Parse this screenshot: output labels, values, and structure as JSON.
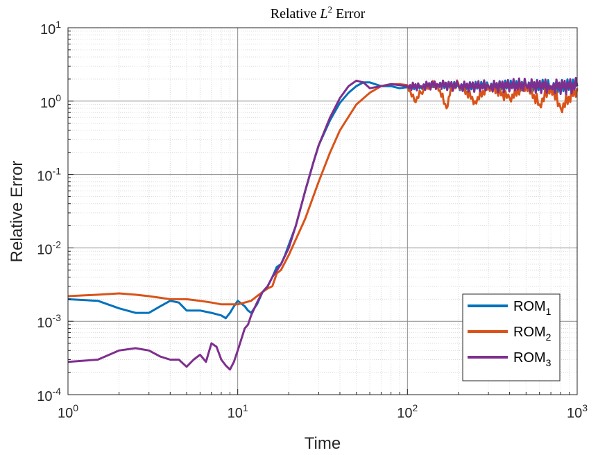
{
  "chart_data": {
    "type": "line",
    "title": "Relative L² Error",
    "title_parts": {
      "text": "Relative ",
      "var": "L",
      "sup": "2",
      "suffix": " Error"
    },
    "xlabel": "Time",
    "ylabel": "Relative Error",
    "xscale": "log",
    "yscale": "log",
    "xlim": [
      1,
      1000
    ],
    "ylim": [
      0.0001,
      10
    ],
    "xticks": [
      {
        "base": "10",
        "exp": "0"
      },
      {
        "base": "10",
        "exp": "1"
      },
      {
        "base": "10",
        "exp": "2"
      },
      {
        "base": "10",
        "exp": "3"
      }
    ],
    "yticks": [
      {
        "base": "10",
        "exp": "-4"
      },
      {
        "base": "10",
        "exp": "-3"
      },
      {
        "base": "10",
        "exp": "-2"
      },
      {
        "base": "10",
        "exp": "-1"
      },
      {
        "base": "10",
        "exp": "0"
      },
      {
        "base": "10",
        "exp": "1"
      }
    ],
    "grid": true,
    "legend_position": "bottom-right",
    "series": [
      {
        "name": "ROM",
        "sub": "1",
        "color": "#0072BD",
        "x": [
          1,
          1.5,
          2,
          2.5,
          3,
          3.5,
          4,
          4.5,
          5,
          6,
          7,
          8,
          8.5,
          9,
          9.5,
          10,
          11,
          11.5,
          12,
          13,
          14,
          15,
          16,
          17,
          18,
          19,
          20,
          22,
          25,
          28,
          30,
          35,
          40,
          45,
          50,
          55,
          60,
          70,
          80,
          90,
          100,
          120,
          150,
          200,
          300,
          500,
          700,
          1000
        ],
        "y": [
          0.002,
          0.0019,
          0.0015,
          0.0013,
          0.0013,
          0.0016,
          0.0019,
          0.0018,
          0.0014,
          0.0014,
          0.0013,
          0.0012,
          0.0011,
          0.0013,
          0.0016,
          0.0019,
          0.0016,
          0.0014,
          0.0013,
          0.0017,
          0.0025,
          0.003,
          0.004,
          0.0055,
          0.006,
          0.008,
          0.011,
          0.02,
          0.06,
          0.15,
          0.25,
          0.55,
          0.95,
          1.3,
          1.6,
          1.8,
          1.8,
          1.6,
          1.6,
          1.5,
          1.55,
          1.6,
          1.7,
          1.6,
          1.6,
          1.65,
          1.6,
          1.6
        ]
      },
      {
        "name": "ROM",
        "sub": "2",
        "color": "#D95319",
        "x": [
          1,
          1.5,
          2,
          2.5,
          3,
          4,
          5,
          6,
          7,
          8,
          9,
          10,
          11,
          12,
          13,
          14,
          15,
          16,
          17,
          18,
          20,
          22,
          25,
          30,
          35,
          40,
          50,
          60,
          70,
          80,
          90,
          100,
          110,
          120,
          130,
          150,
          170,
          180,
          200,
          250,
          300,
          400,
          500,
          600,
          700,
          800,
          1000
        ],
        "y": [
          0.0022,
          0.0023,
          0.0024,
          0.0023,
          0.0022,
          0.002,
          0.002,
          0.0019,
          0.0018,
          0.0017,
          0.0017,
          0.0017,
          0.0018,
          0.0019,
          0.0022,
          0.0025,
          0.0028,
          0.003,
          0.0045,
          0.005,
          0.008,
          0.013,
          0.025,
          0.08,
          0.2,
          0.4,
          0.9,
          1.3,
          1.6,
          1.7,
          1.7,
          1.65,
          1.0,
          1.3,
          1.6,
          1.7,
          0.8,
          1.5,
          1.7,
          1.0,
          1.6,
          1.1,
          1.7,
          0.9,
          1.6,
          0.8,
          1.5
        ]
      },
      {
        "name": "ROM",
        "sub": "3",
        "color": "#7E2F8E",
        "x": [
          1,
          1.5,
          2,
          2.5,
          3,
          3.5,
          4,
          4.5,
          5,
          5.5,
          6,
          6.5,
          7,
          7.5,
          8,
          8.5,
          9,
          9.5,
          10,
          11,
          11.5,
          12,
          13,
          14,
          15,
          16,
          18,
          20,
          22,
          25,
          28,
          30,
          35,
          40,
          45,
          50,
          55,
          60,
          70,
          80,
          90,
          100,
          120,
          150,
          200,
          300,
          500,
          700,
          1000
        ],
        "y": [
          0.00028,
          0.0003,
          0.0004,
          0.00043,
          0.0004,
          0.00033,
          0.0003,
          0.0003,
          0.00024,
          0.0003,
          0.00035,
          0.00028,
          0.0005,
          0.00045,
          0.0003,
          0.00025,
          0.00022,
          0.00028,
          0.0004,
          0.0008,
          0.0009,
          0.0012,
          0.0018,
          0.0025,
          0.003,
          0.004,
          0.006,
          0.01,
          0.02,
          0.06,
          0.15,
          0.25,
          0.6,
          1.1,
          1.6,
          1.9,
          1.8,
          1.5,
          1.6,
          1.7,
          1.65,
          1.6,
          1.6,
          1.7,
          1.6,
          1.6,
          1.65,
          1.6,
          1.6
        ]
      }
    ]
  }
}
